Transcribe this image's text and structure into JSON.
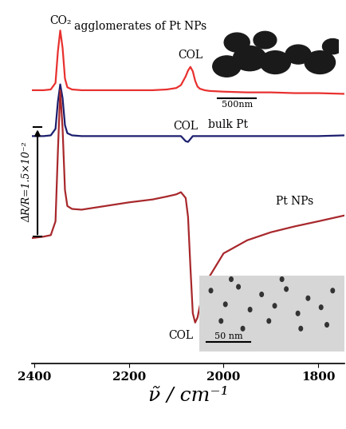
{
  "chart_data": {
    "type": "line",
    "x_label": "ν̃ / cm⁻¹",
    "x": [
      2405,
      2380,
      2365,
      2355,
      2350,
      2345,
      2340,
      2335,
      2330,
      2320,
      2300,
      2250,
      2200,
      2150,
      2120,
      2100,
      2090,
      2080,
      2075,
      2070,
      2065,
      2060,
      2055,
      2050,
      2040,
      2030,
      2000,
      1950,
      1900,
      1850,
      1800,
      1745
    ],
    "series": [
      {
        "name": "agglomerates of Pt NPs",
        "color": "#e8312f",
        "values": [
          0.0375,
          0.0375,
          0.0376,
          0.0385,
          0.0428,
          0.0457,
          0.0433,
          0.0391,
          0.0379,
          0.0376,
          0.0375,
          0.0375,
          0.0375,
          0.0375,
          0.0376,
          0.0378,
          0.0382,
          0.0394,
          0.0402,
          0.0407,
          0.0401,
          0.0388,
          0.038,
          0.0377,
          0.0375,
          0.0374,
          0.0373,
          0.0372,
          0.0372,
          0.0371,
          0.0371,
          0.037
        ]
      },
      {
        "name": "bulk Pt",
        "color": "#1c1f6e",
        "values": [
          0.0312,
          0.0312,
          0.0313,
          0.0322,
          0.0359,
          0.0383,
          0.0364,
          0.0327,
          0.0316,
          0.0313,
          0.0312,
          0.0312,
          0.0312,
          0.0312,
          0.0312,
          0.0312,
          0.0312,
          0.0305,
          0.0304,
          0.0308,
          0.0312,
          0.0312,
          0.0312,
          0.0312,
          0.0312,
          0.0312,
          0.0312,
          0.0312,
          0.0312,
          0.0312,
          0.0312,
          0.0313
        ]
      },
      {
        "name": "Pt NPs",
        "color": "#a8282c",
        "values": [
          0.0172,
          0.0174,
          0.0176,
          0.0195,
          0.029,
          0.0375,
          0.0322,
          0.0238,
          0.0216,
          0.0212,
          0.0211,
          0.0216,
          0.0221,
          0.0225,
          0.0229,
          0.0232,
          0.0235,
          0.0227,
          0.0201,
          0.0132,
          0.0069,
          0.0056,
          0.0063,
          0.0079,
          0.0102,
          0.0119,
          0.0151,
          0.0169,
          0.018,
          0.0188,
          0.0195,
          0.0203
        ]
      }
    ],
    "xlim": [
      2405,
      1745
    ],
    "xticks": [
      2400,
      2200,
      2000,
      1800
    ],
    "ylim": [
      0,
      0.049
    ],
    "tick_labels": "x",
    "annotations": [
      {
        "text": "CO₂",
        "x": 2345,
        "y": 0.0463
      },
      {
        "text": "COL",
        "x": 2070,
        "y": 0.0415
      },
      {
        "text": "COL",
        "x": 2080,
        "y": 0.0318
      },
      {
        "text": "COL",
        "x": 2090,
        "y": 0.003
      }
    ],
    "scale_bar": {
      "label": "ΔR/R=1.5×10⁻²",
      "x": 2393,
      "start": 0.0174,
      "end": 0.0324
    },
    "insets": [
      {
        "scale_bar": "500nm"
      },
      {
        "scale_bar": "50 nm"
      }
    ]
  }
}
